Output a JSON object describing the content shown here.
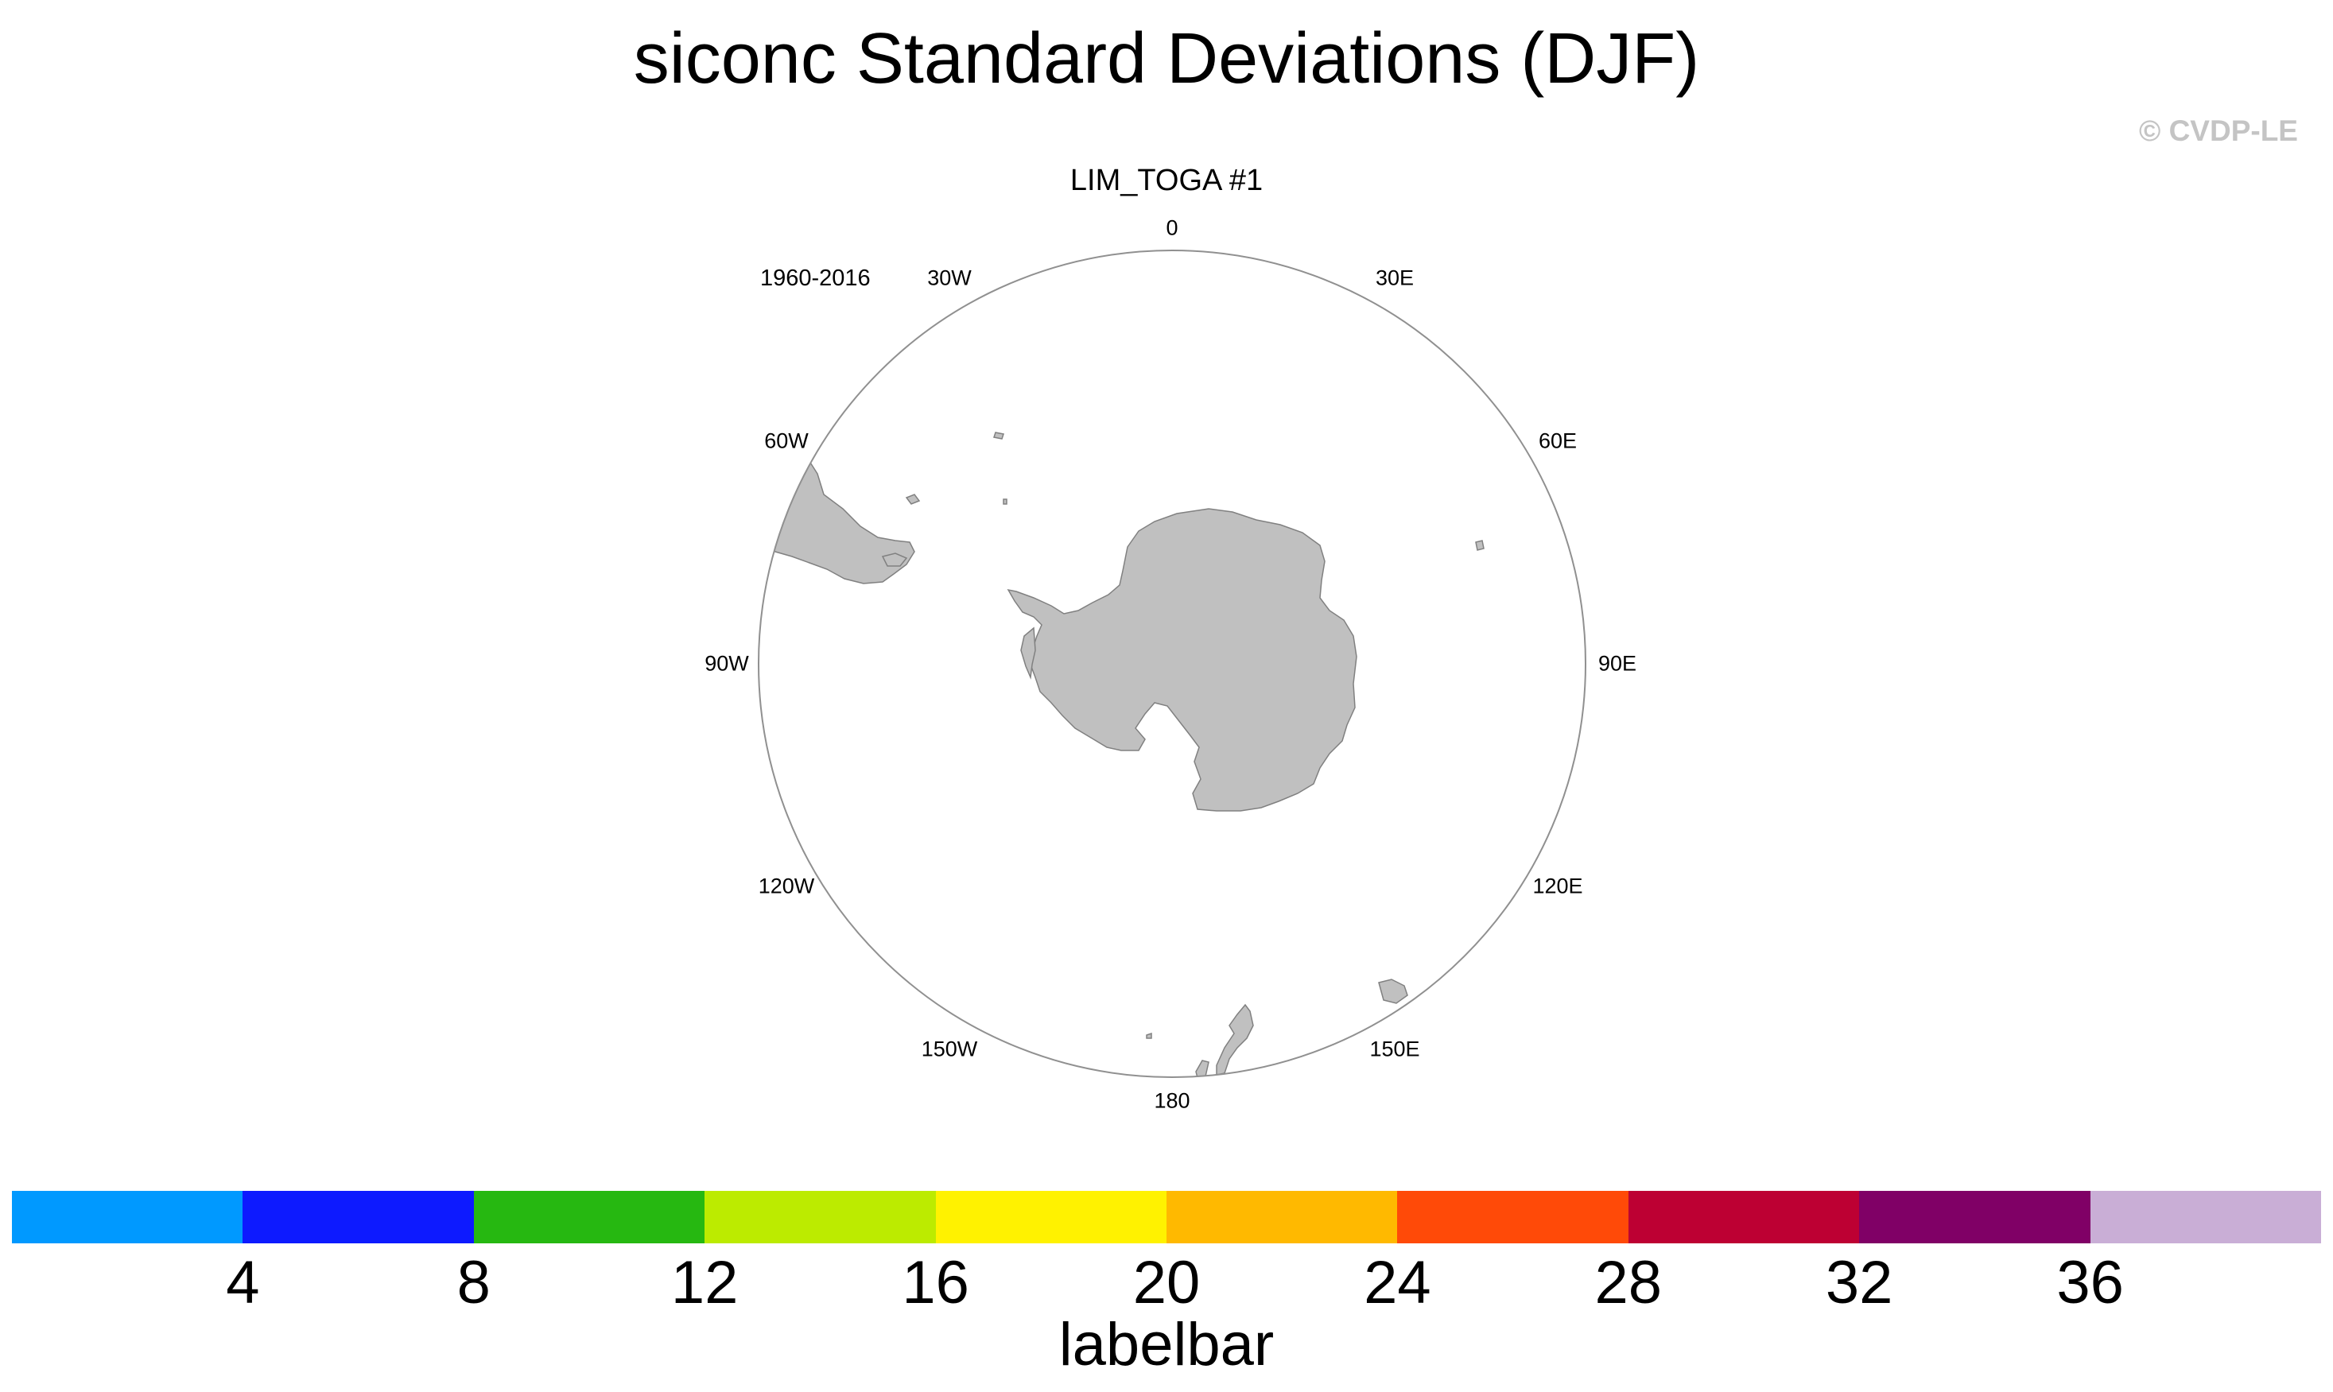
{
  "title": "siconc Standard Deviations (DJF)",
  "copyright": "© CVDP-LE",
  "panel_title": "LIM_TOGA #1",
  "period": "1960-2016",
  "longitude_labels": [
    "0",
    "30E",
    "60E",
    "90E",
    "120E",
    "150E",
    "180",
    "150W",
    "120W",
    "90W",
    "60W",
    "30W"
  ],
  "map": {
    "projection": "south-polar stereographic",
    "land_color": "#c0c0c0",
    "coast_color": "#808080",
    "border_color": "#909090",
    "land_features": [
      "Antarctica",
      "South America",
      "New Zealand",
      "Tasmania",
      "Kerguelen",
      "South Georgia"
    ]
  },
  "labelbar": {
    "title": "labelbar",
    "colors": [
      "#0099ff",
      "#0d1aff",
      "#26b811",
      "#bceb00",
      "#fff200",
      "#ffb900",
      "#ff4a08",
      "#bd0033",
      "#800066",
      "#c9aed6"
    ],
    "tick_labels": [
      "4",
      "8",
      "12",
      "16",
      "20",
      "24",
      "28",
      "32",
      "36"
    ]
  }
}
